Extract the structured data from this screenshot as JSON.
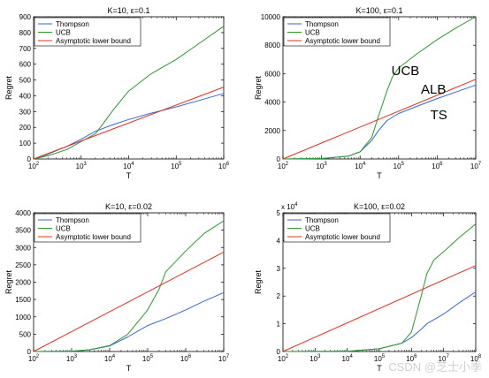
{
  "chart_data": [
    {
      "type": "line",
      "title": "K=10, ε=0.1",
      "xlabel": "T",
      "ylabel": "Regret",
      "xscale": "log",
      "xlim": [
        100,
        1000000
      ],
      "ylim": [
        0,
        900
      ],
      "x_ticks": [
        {
          "value": 100,
          "base": "10",
          "exp": "2"
        },
        {
          "value": 1000,
          "base": "10",
          "exp": "3"
        },
        {
          "value": 10000,
          "base": "10",
          "exp": "4"
        },
        {
          "value": 100000,
          "base": "10",
          "exp": "5"
        },
        {
          "value": 1000000,
          "base": "10",
          "exp": "6"
        }
      ],
      "y_ticks": [
        "0",
        "100",
        "200",
        "300",
        "400",
        "500",
        "600",
        "700",
        "800",
        "900"
      ],
      "y_multiplier": "",
      "legend": {
        "placement": "top-left",
        "entries": [
          "Thompson",
          "UCB",
          "Asymptotic lower bound"
        ]
      },
      "annotations": [],
      "series": [
        {
          "name": "Thompson",
          "color": "#3366dd",
          "x": [
            100,
            200,
            500,
            1000,
            2000,
            5000,
            10000,
            30000,
            100000,
            300000,
            1000000
          ],
          "y": [
            0,
            30,
            80,
            125,
            175,
            220,
            250,
            290,
            330,
            370,
            415
          ]
        },
        {
          "name": "UCB",
          "color": "#2a9a2a",
          "x": [
            100,
            200,
            500,
            1000,
            2000,
            3000,
            5000,
            10000,
            30000,
            100000,
            300000,
            1000000
          ],
          "y": [
            0,
            20,
            60,
            110,
            160,
            230,
            320,
            430,
            540,
            630,
            730,
            840
          ]
        },
        {
          "name": "Asymptotic lower bound",
          "color": "#e03020",
          "x": [
            100,
            1000000
          ],
          "y": [
            0,
            455
          ]
        }
      ]
    },
    {
      "type": "line",
      "title": "K=100, ε=0.1",
      "xlabel": "T",
      "ylabel": "Regret",
      "xscale": "log",
      "xlim": [
        100,
        10000000
      ],
      "ylim": [
        0,
        10000
      ],
      "x_ticks": [
        {
          "value": 100,
          "base": "10",
          "exp": "2"
        },
        {
          "value": 1000,
          "base": "10",
          "exp": "3"
        },
        {
          "value": 10000,
          "base": "10",
          "exp": "4"
        },
        {
          "value": 100000,
          "base": "10",
          "exp": "5"
        },
        {
          "value": 1000000,
          "base": "10",
          "exp": "6"
        },
        {
          "value": 10000000,
          "base": "10",
          "exp": "7"
        }
      ],
      "y_ticks": [
        "0",
        "2000",
        "4000",
        "6000",
        "8000",
        "10000"
      ],
      "y_multiplier": "",
      "legend": {
        "placement": "top-left",
        "entries": [
          "Thompson",
          "UCB",
          "Asymptotic lower bound"
        ]
      },
      "annotations": [
        {
          "text": "UCB",
          "x": 150000,
          "y": 5900,
          "size": 15
        },
        {
          "text": "ALB",
          "x": 800000,
          "y": 4600,
          "size": 15
        },
        {
          "text": "TS",
          "x": 1100000,
          "y": 2800,
          "size": 15
        }
      ],
      "series": [
        {
          "name": "Thompson",
          "color": "#3366dd",
          "x": [
            100,
            1000,
            5000,
            10000,
            20000,
            30000,
            50000,
            100000,
            300000,
            1000000,
            3000000,
            10000000
          ],
          "y": [
            0,
            30,
            200,
            500,
            1300,
            2000,
            2700,
            3200,
            3700,
            4250,
            4700,
            5200
          ]
        },
        {
          "name": "UCB",
          "color": "#2a9a2a",
          "x": [
            100,
            1000,
            5000,
            10000,
            20000,
            30000,
            50000,
            70000,
            100000,
            300000,
            1000000,
            3000000,
            10000000
          ],
          "y": [
            0,
            30,
            200,
            500,
            1500,
            3000,
            4800,
            5800,
            6400,
            7400,
            8400,
            9200,
            10000
          ]
        },
        {
          "name": "Asymptotic lower bound",
          "color": "#e03020",
          "x": [
            100,
            10000000
          ],
          "y": [
            0,
            5600
          ]
        }
      ]
    },
    {
      "type": "line",
      "title": "K=10, ε=0.02",
      "xlabel": "T",
      "ylabel": "Regret",
      "xscale": "log",
      "xlim": [
        100,
        10000000
      ],
      "ylim": [
        0,
        4000
      ],
      "x_ticks": [
        {
          "value": 100,
          "base": "10",
          "exp": "2"
        },
        {
          "value": 1000,
          "base": "10",
          "exp": "3"
        },
        {
          "value": 10000,
          "base": "10",
          "exp": "4"
        },
        {
          "value": 100000,
          "base": "10",
          "exp": "5"
        },
        {
          "value": 1000000,
          "base": "10",
          "exp": "6"
        },
        {
          "value": 10000000,
          "base": "10",
          "exp": "7"
        }
      ],
      "y_ticks": [
        "0",
        "500",
        "1000",
        "1500",
        "2000",
        "2500",
        "3000",
        "3500",
        "4000"
      ],
      "y_multiplier": "",
      "legend": {
        "placement": "top-left",
        "entries": [
          "Thompson",
          "UCB",
          "Asymptotic lower bound"
        ]
      },
      "annotations": [],
      "series": [
        {
          "name": "Thompson",
          "color": "#3366dd",
          "x": [
            100,
            1000,
            3000,
            10000,
            30000,
            100000,
            300000,
            1000000,
            3000000,
            10000000
          ],
          "y": [
            0,
            10,
            50,
            160,
            420,
            750,
            950,
            1200,
            1450,
            1700
          ]
        },
        {
          "name": "UCB",
          "color": "#2a9a2a",
          "x": [
            100,
            1000,
            3000,
            10000,
            30000,
            100000,
            200000,
            300000,
            1000000,
            3000000,
            10000000
          ],
          "y": [
            0,
            10,
            50,
            170,
            500,
            1200,
            1800,
            2300,
            2900,
            3400,
            3770
          ]
        },
        {
          "name": "Asymptotic lower bound",
          "color": "#e03020",
          "x": [
            100,
            10000000
          ],
          "y": [
            0,
            2870
          ]
        }
      ]
    },
    {
      "type": "line",
      "title": "K=100, ε=0.02",
      "xlabel": "T",
      "ylabel": "Regret",
      "xscale": "log",
      "xlim": [
        100,
        100000000
      ],
      "ylim": [
        0,
        50000
      ],
      "x_ticks": [
        {
          "value": 100,
          "base": "10",
          "exp": "2"
        },
        {
          "value": 1000,
          "base": "10",
          "exp": "3"
        },
        {
          "value": 10000,
          "base": "10",
          "exp": "4"
        },
        {
          "value": 100000,
          "base": "10",
          "exp": "5"
        },
        {
          "value": 1000000,
          "base": "10",
          "exp": "6"
        },
        {
          "value": 10000000,
          "base": "10",
          "exp": "7"
        },
        {
          "value": 100000000,
          "base": "10",
          "exp": "8"
        }
      ],
      "y_ticks": [
        "0",
        "1",
        "2",
        "3",
        "4",
        "5"
      ],
      "y_multiplier": "x 10",
      "y_multiplier_exp": "4",
      "legend": {
        "placement": "top-left",
        "entries": [
          "Thompson",
          "UCB",
          "Asymptotic lower bound"
        ]
      },
      "annotations": [],
      "series": [
        {
          "name": "Thompson",
          "color": "#3366dd",
          "x": [
            100,
            10000,
            100000,
            500000,
            1000000,
            2000000,
            3000000,
            10000000,
            30000000,
            100000000
          ],
          "y": [
            0,
            100,
            1000,
            3000,
            5000,
            8000,
            10000,
            13500,
            17500,
            21500
          ]
        },
        {
          "name": "UCB",
          "color": "#2a9a2a",
          "x": [
            100,
            10000,
            100000,
            500000,
            1000000,
            2000000,
            3000000,
            5000000,
            10000000,
            30000000,
            100000000
          ],
          "y": [
            0,
            100,
            1000,
            3000,
            7000,
            20000,
            28000,
            33000,
            36000,
            41000,
            46000
          ]
        },
        {
          "name": "Asymptotic lower bound",
          "color": "#e03020",
          "x": [
            100,
            100000000
          ],
          "y": [
            0,
            31000
          ]
        }
      ]
    }
  ],
  "watermark": "CSDN @芝士小季"
}
